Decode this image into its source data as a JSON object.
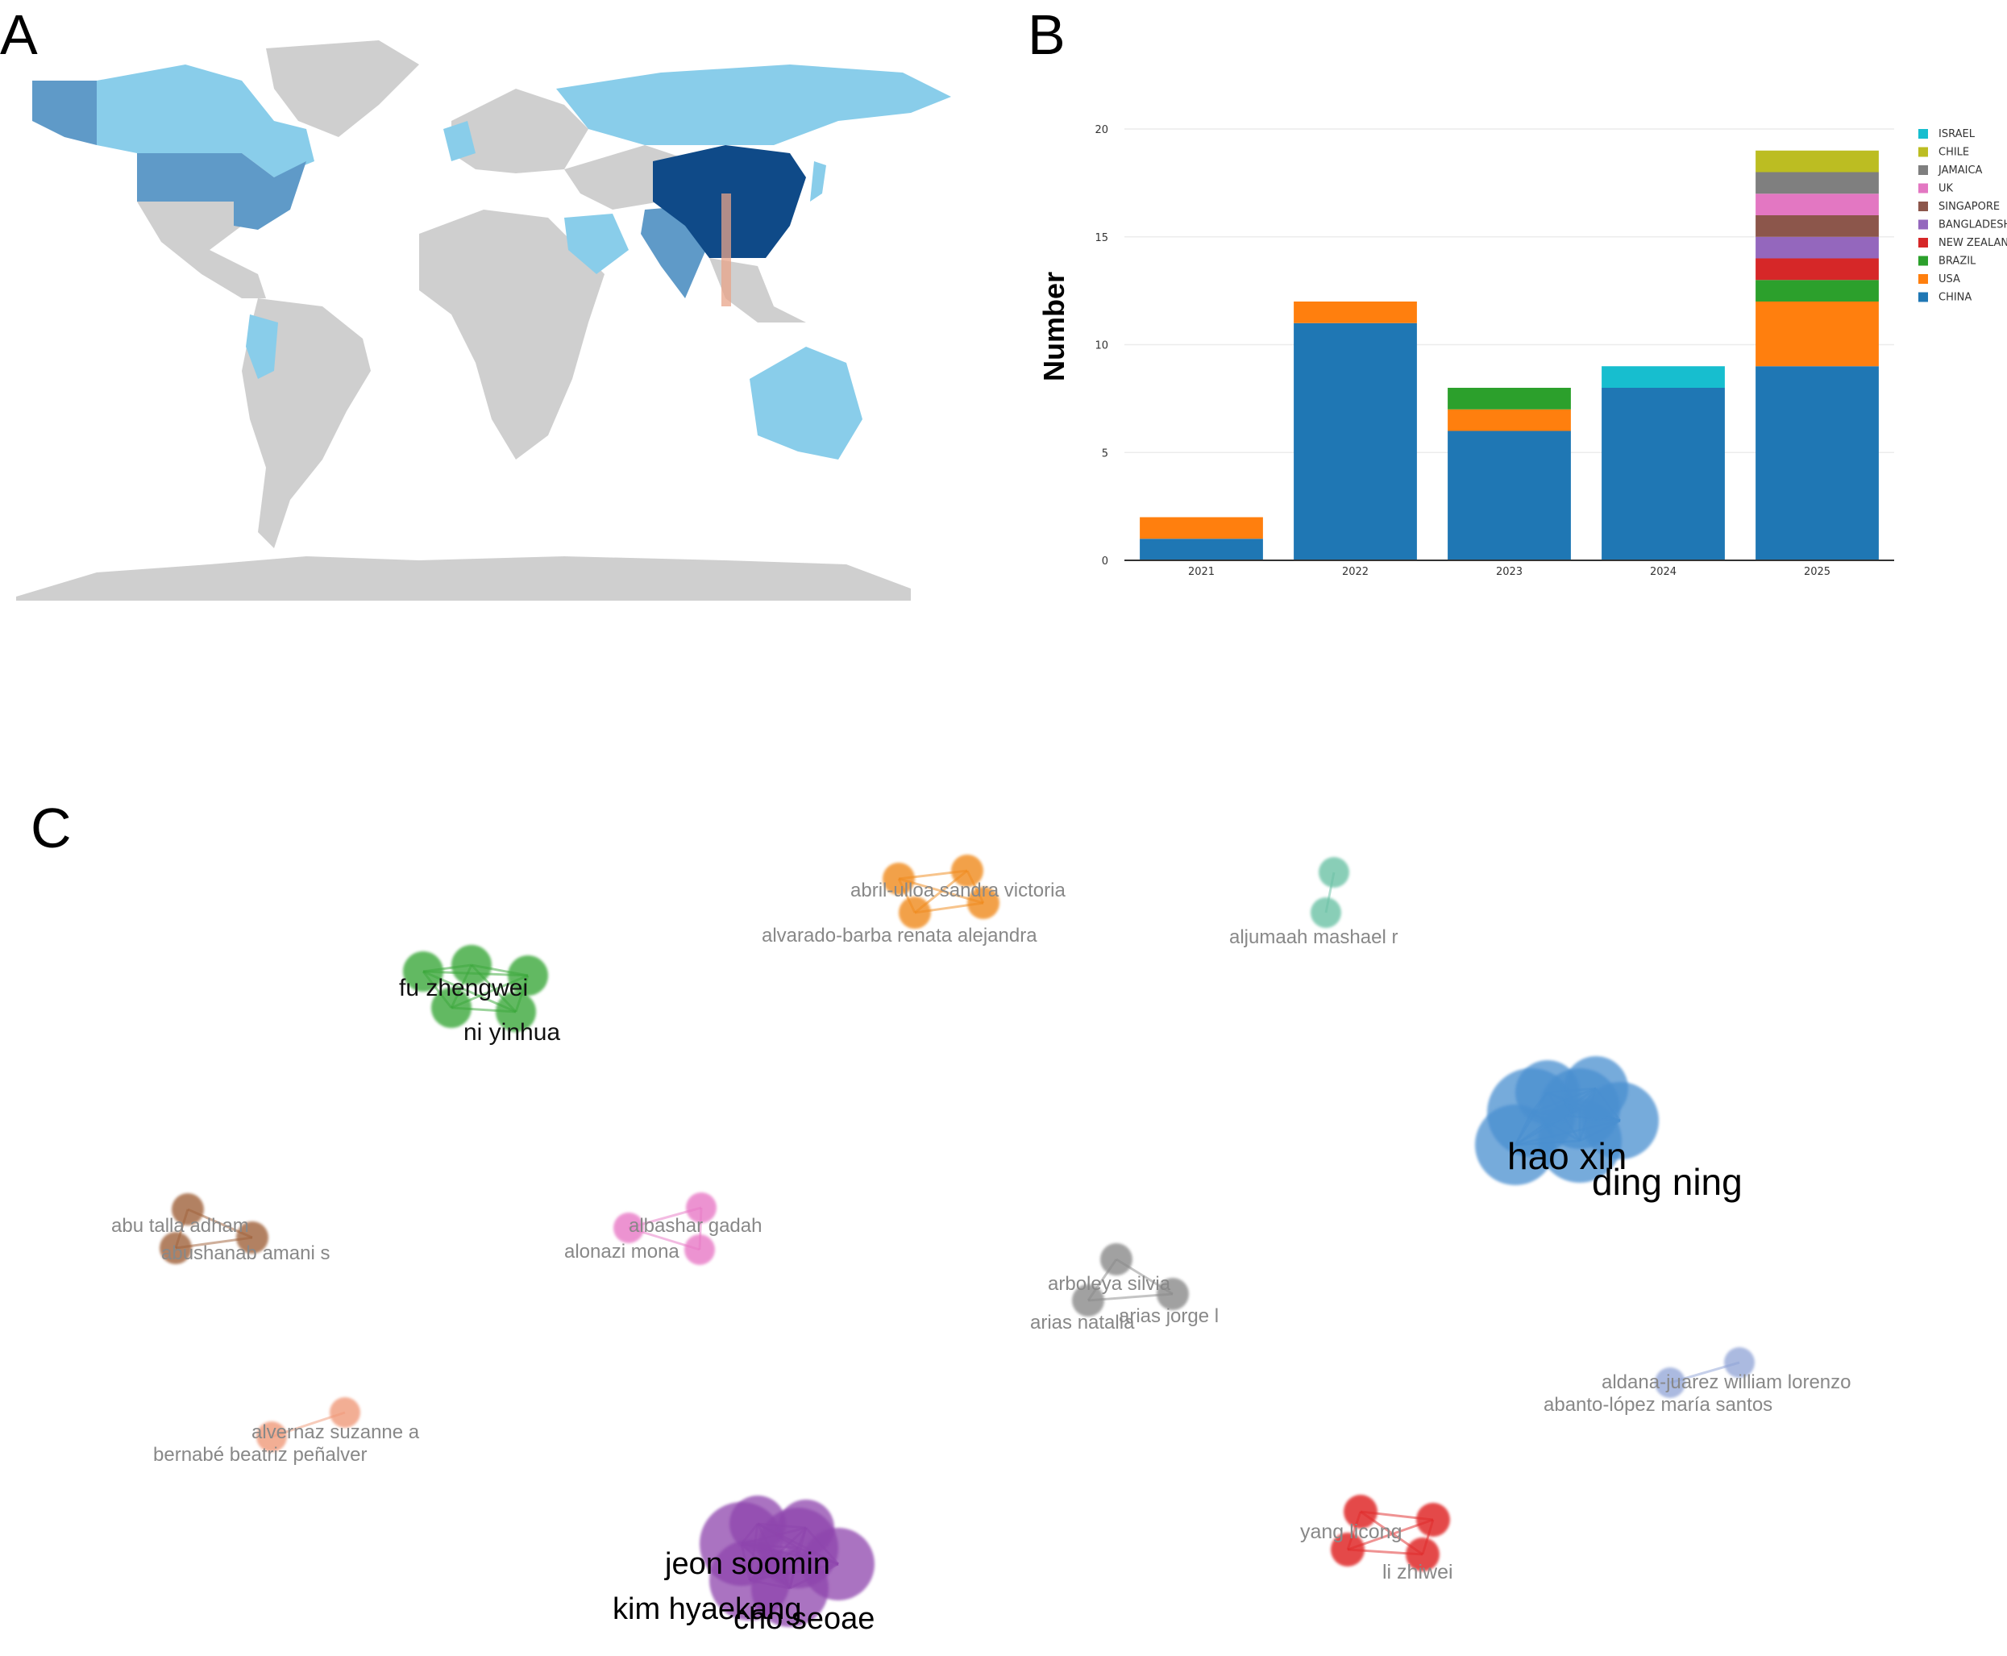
{
  "panels": {
    "a": "A",
    "b": "B",
    "c": "C"
  },
  "colors": {
    "map_base": "#cfcfcf",
    "map_light": "#89cdea",
    "map_mid": "#5f9ac8",
    "map_dark": "#0f4a88",
    "china": "#1f77b4",
    "usa": "#ff7f0e",
    "brazil": "#2ca02c",
    "new_zealand": "#d62728",
    "bangladesh": "#9467bd",
    "singapore": "#8c564b",
    "uk": "#e377c2",
    "jamaica": "#7f7f7f",
    "chile": "#bcbd22",
    "israel": "#17becf"
  },
  "map": {
    "highlighted_countries": [
      {
        "name": "China",
        "shade": "dark"
      },
      {
        "name": "United States",
        "shade": "mid"
      },
      {
        "name": "India",
        "shade": "mid"
      },
      {
        "name": "Canada",
        "shade": "light"
      },
      {
        "name": "Russia",
        "shade": "light"
      },
      {
        "name": "Australia",
        "shade": "light"
      },
      {
        "name": "Peru",
        "shade": "light"
      },
      {
        "name": "Saudi Arabia",
        "shade": "light"
      },
      {
        "name": "Japan",
        "shade": "light"
      },
      {
        "name": "United Kingdom",
        "shade": "light"
      }
    ]
  },
  "chart_data": {
    "type": "bar",
    "stacked": true,
    "categories": [
      "2021",
      "2022",
      "2023",
      "2024",
      "2025"
    ],
    "ylabel": "Number",
    "xlabel": "",
    "ylim": [
      0,
      20
    ],
    "yticks": [
      "0",
      "5",
      "10",
      "15",
      "20"
    ],
    "grid": true,
    "legend_position": "right",
    "series": [
      {
        "name": "CHINA",
        "color": "#1f77b4",
        "values": [
          1,
          11,
          6,
          8,
          9
        ]
      },
      {
        "name": "USA",
        "color": "#ff7f0e",
        "values": [
          1,
          1,
          1,
          0,
          3
        ]
      },
      {
        "name": "BRAZIL",
        "color": "#2ca02c",
        "values": [
          0,
          0,
          1,
          0,
          1
        ]
      },
      {
        "name": "NEW ZEALAND",
        "color": "#d62728",
        "values": [
          0,
          0,
          0,
          0,
          1
        ]
      },
      {
        "name": "BANGLADESH",
        "color": "#9467bd",
        "values": [
          0,
          0,
          0,
          0,
          1
        ]
      },
      {
        "name": "SINGAPORE",
        "color": "#8c564b",
        "values": [
          0,
          0,
          0,
          0,
          1
        ]
      },
      {
        "name": "UK",
        "color": "#e377c2",
        "values": [
          0,
          0,
          0,
          0,
          1
        ]
      },
      {
        "name": "JAMAICA",
        "color": "#7f7f7f",
        "values": [
          0,
          0,
          0,
          0,
          1
        ]
      },
      {
        "name": "CHILE",
        "color": "#bcbd22",
        "values": [
          0,
          0,
          0,
          0,
          1
        ]
      },
      {
        "name": "ISRAEL",
        "color": "#17becf",
        "values": [
          0,
          0,
          0,
          1,
          0
        ]
      }
    ],
    "legend_order": [
      "ISRAEL",
      "CHILE",
      "JAMAICA",
      "UK",
      "SINGAPORE",
      "BANGLADESH",
      "NEW ZEALAND",
      "BRAZIL",
      "USA",
      "CHINA"
    ]
  },
  "network": {
    "clusters": [
      {
        "color": "#4a8fd0",
        "labels": [
          "hao xin",
          "ding ning"
        ],
        "size": "large"
      },
      {
        "color": "#8e44ad",
        "labels": [
          "jeon soomin",
          "kim hyaekang",
          "cho seoae"
        ],
        "size": "large"
      },
      {
        "color": "#3aa83a",
        "labels": [
          "fu zhengwei",
          "ni yinhua"
        ],
        "size": "medium"
      },
      {
        "color": "#f08a1c",
        "labels": [
          "abril-ulloa sandra victoria",
          "alvarado-barba renata alejandra"
        ],
        "size": "small"
      },
      {
        "color": "#6cc2a6",
        "labels": [
          "aljumaah mashael r"
        ],
        "size": "small"
      },
      {
        "color": "#a0623a",
        "labels": [
          "abu talla adham",
          "abushanab amani s"
        ],
        "size": "small"
      },
      {
        "color": "#e879c6",
        "labels": [
          "albashar gadah",
          "alonazi mona"
        ],
        "size": "small"
      },
      {
        "color": "#8a8a8a",
        "labels": [
          "arboleya silvia",
          "arias natalia",
          "arias jorge l"
        ],
        "size": "small"
      },
      {
        "color": "#8fa3d6",
        "labels": [
          "aldana-juarez william lorenzo",
          "abanto-lópez maría santos"
        ],
        "size": "small"
      },
      {
        "color": "#f09a7a",
        "labels": [
          "alvernaz suzanne a",
          "bernabé beatriz peñalver"
        ],
        "size": "small"
      },
      {
        "color": "#e02a2a",
        "labels": [
          "yang licong",
          "li zhiwei"
        ],
        "size": "small"
      }
    ]
  }
}
